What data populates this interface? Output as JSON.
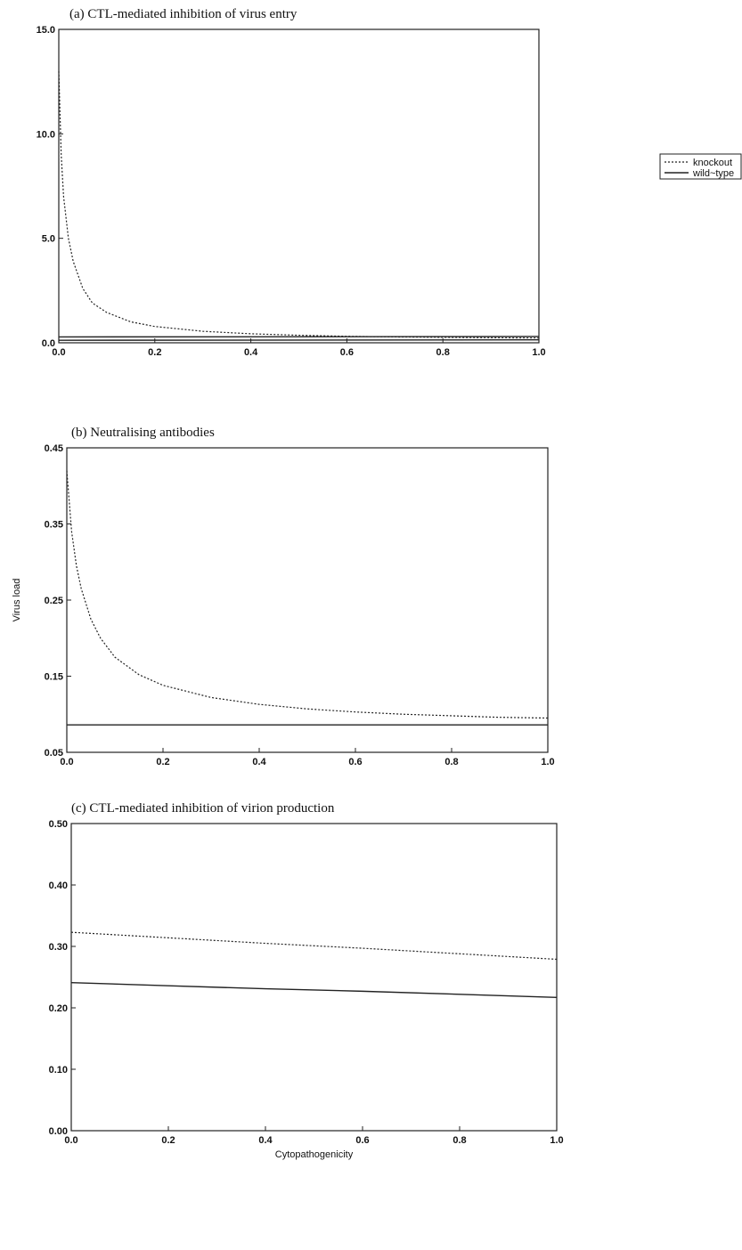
{
  "legend": {
    "placement": "right",
    "entries": [
      {
        "label": "knockout",
        "style": "dotted"
      },
      {
        "label": "wild~type",
        "style": "solid"
      }
    ]
  },
  "chart_data": [
    {
      "type": "line",
      "title": "(a) CTL-mediated inhibition of virus entry",
      "xlabel": "",
      "ylabel": "",
      "xlim": [
        0,
        1
      ],
      "ylim": [
        0,
        15
      ],
      "x_ticks": [
        "0.0",
        "0.2",
        "0.4",
        "0.6",
        "0.8",
        "1.0"
      ],
      "y_ticks": [
        "0.0",
        "5.0",
        "10.0",
        "15.0"
      ],
      "series": [
        {
          "name": "knockout",
          "style": "dotted",
          "x": [
            0,
            0.005,
            0.01,
            0.02,
            0.03,
            0.05,
            0.07,
            0.1,
            0.15,
            0.2,
            0.3,
            0.4,
            0.5,
            0.6,
            0.7,
            0.8,
            0.9,
            1.0
          ],
          "y": [
            13.0,
            9.0,
            7.0,
            5.0,
            3.9,
            2.6,
            1.9,
            1.45,
            1.0,
            0.78,
            0.55,
            0.43,
            0.36,
            0.31,
            0.28,
            0.26,
            0.24,
            0.23
          ]
        },
        {
          "name": "wild~type",
          "style": "solid",
          "x": [
            0,
            1.0
          ],
          "y": [
            0.12,
            0.14
          ]
        },
        {
          "name": "wild~type",
          "style": "solid",
          "x": [
            0,
            1.0
          ],
          "y": [
            0.28,
            0.3
          ]
        }
      ]
    },
    {
      "type": "line",
      "title": "(b) Neutralising antibodies",
      "xlabel": "",
      "ylabel": "Virus load",
      "xlim": [
        0,
        1
      ],
      "ylim": [
        0.05,
        0.45
      ],
      "x_ticks": [
        "0.0",
        "0.2",
        "0.4",
        "0.6",
        "0.8",
        "1.0"
      ],
      "y_ticks": [
        "0.05",
        "0.15",
        "0.25",
        "0.35",
        "0.45"
      ],
      "series": [
        {
          "name": "knockout",
          "style": "dotted",
          "x": [
            0,
            0.005,
            0.01,
            0.02,
            0.03,
            0.05,
            0.07,
            0.1,
            0.15,
            0.2,
            0.3,
            0.4,
            0.5,
            0.6,
            0.7,
            0.8,
            0.9,
            1.0
          ],
          "y": [
            0.42,
            0.38,
            0.34,
            0.295,
            0.265,
            0.225,
            0.2,
            0.175,
            0.152,
            0.138,
            0.122,
            0.113,
            0.107,
            0.103,
            0.1,
            0.098,
            0.096,
            0.095
          ]
        },
        {
          "name": "wild~type",
          "style": "solid",
          "x": [
            0,
            1.0
          ],
          "y": [
            0.086,
            0.086
          ]
        }
      ]
    },
    {
      "type": "line",
      "title": "(c) CTL-mediated inhibition of virion production",
      "xlabel": "Cytopathogenicity",
      "ylabel": "",
      "xlim": [
        0,
        1
      ],
      "ylim": [
        0,
        0.5
      ],
      "x_ticks": [
        "0.0",
        "0.2",
        "0.4",
        "0.6",
        "0.8",
        "1.0"
      ],
      "y_ticks": [
        "0.00",
        "0.10",
        "0.20",
        "0.30",
        "0.40",
        "0.50"
      ],
      "series": [
        {
          "name": "knockout",
          "style": "dotted",
          "x": [
            0,
            0.2,
            0.4,
            0.6,
            0.8,
            1.0
          ],
          "y": [
            0.323,
            0.314,
            0.305,
            0.297,
            0.288,
            0.279
          ]
        },
        {
          "name": "wild~type",
          "style": "solid",
          "x": [
            0,
            0.2,
            0.4,
            0.6,
            0.8,
            1.0
          ],
          "y": [
            0.241,
            0.236,
            0.231,
            0.227,
            0.222,
            0.217
          ]
        }
      ]
    }
  ]
}
